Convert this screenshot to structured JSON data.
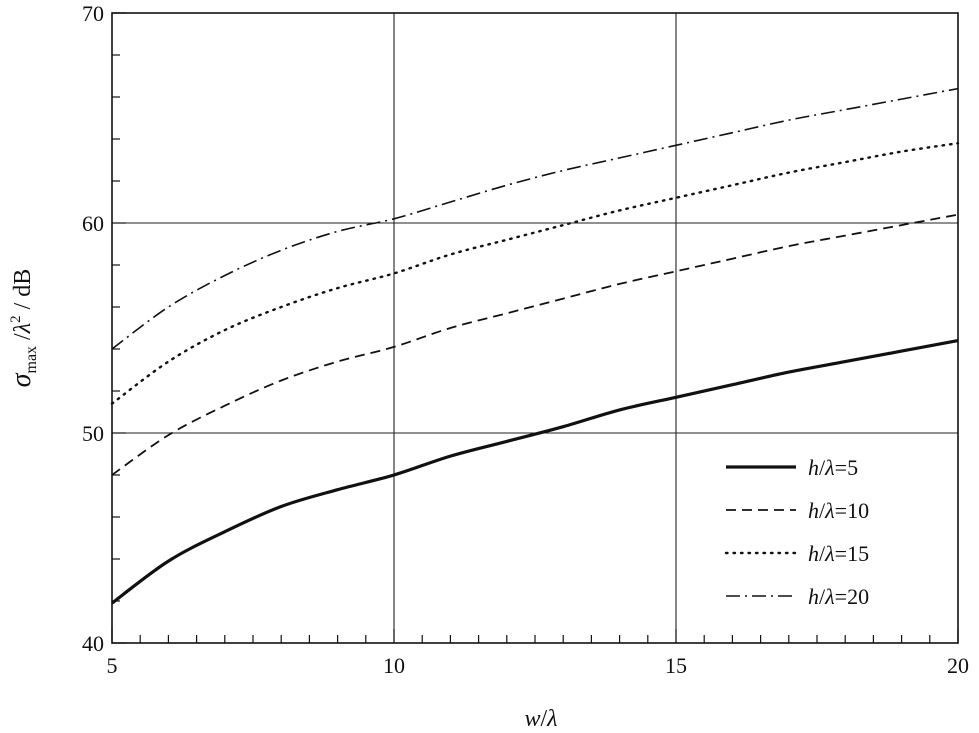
{
  "chart_data": {
    "type": "line",
    "title": "",
    "xlabel_parts": {
      "w": "w",
      "slash": "/",
      "lambda": "λ"
    },
    "ylabel_parts": {
      "sigma": "σ",
      "sub": "max",
      "mid": " /",
      "lambda": "λ",
      "sup": "2",
      "unit": " / dB"
    },
    "xlim": [
      5,
      20
    ],
    "ylim": [
      40,
      70
    ],
    "x_ticks": [
      5,
      10,
      15,
      20
    ],
    "y_ticks": [
      40,
      50,
      60,
      70
    ],
    "x_tick_labels": [
      "5",
      "10",
      "15",
      "20"
    ],
    "y_tick_labels": [
      "40",
      "50",
      "60",
      "70"
    ],
    "grid": true,
    "legend_position": "bottom-right",
    "x": [
      5,
      6,
      7,
      8,
      9,
      10,
      11,
      12,
      13,
      14,
      15,
      16,
      17,
      18,
      19,
      20
    ],
    "series": [
      {
        "name": "h/λ=5",
        "label_parts": {
          "h": "h",
          "slash": "/",
          "lambda": "λ",
          "eq": "=5"
        },
        "style": "solid",
        "values": [
          41.9,
          43.9,
          45.3,
          46.5,
          47.3,
          48.0,
          48.9,
          49.6,
          50.3,
          51.1,
          51.7,
          52.3,
          52.9,
          53.4,
          53.9,
          54.4
        ]
      },
      {
        "name": "h/λ=10",
        "label_parts": {
          "h": "h",
          "slash": "/",
          "lambda": "λ",
          "eq": "=10"
        },
        "style": "dashed",
        "values": [
          48.0,
          49.9,
          51.3,
          52.5,
          53.4,
          54.1,
          55.0,
          55.7,
          56.4,
          57.1,
          57.7,
          58.3,
          58.9,
          59.4,
          59.9,
          60.4
        ]
      },
      {
        "name": "h/λ=15",
        "label_parts": {
          "h": "h",
          "slash": "/",
          "lambda": "λ",
          "eq": "=15"
        },
        "style": "dotted",
        "values": [
          51.4,
          53.4,
          54.9,
          56.0,
          56.9,
          57.6,
          58.5,
          59.2,
          59.9,
          60.6,
          61.2,
          61.8,
          62.4,
          62.9,
          63.4,
          63.8
        ]
      },
      {
        "name": "h/λ=20",
        "label_parts": {
          "h": "h",
          "slash": "/",
          "lambda": "λ",
          "eq": "=20"
        },
        "style": "dashdot",
        "values": [
          54.0,
          56.0,
          57.5,
          58.7,
          59.6,
          60.2,
          61.0,
          61.8,
          62.5,
          63.1,
          63.7,
          64.3,
          64.9,
          65.4,
          65.9,
          66.4
        ]
      }
    ]
  }
}
